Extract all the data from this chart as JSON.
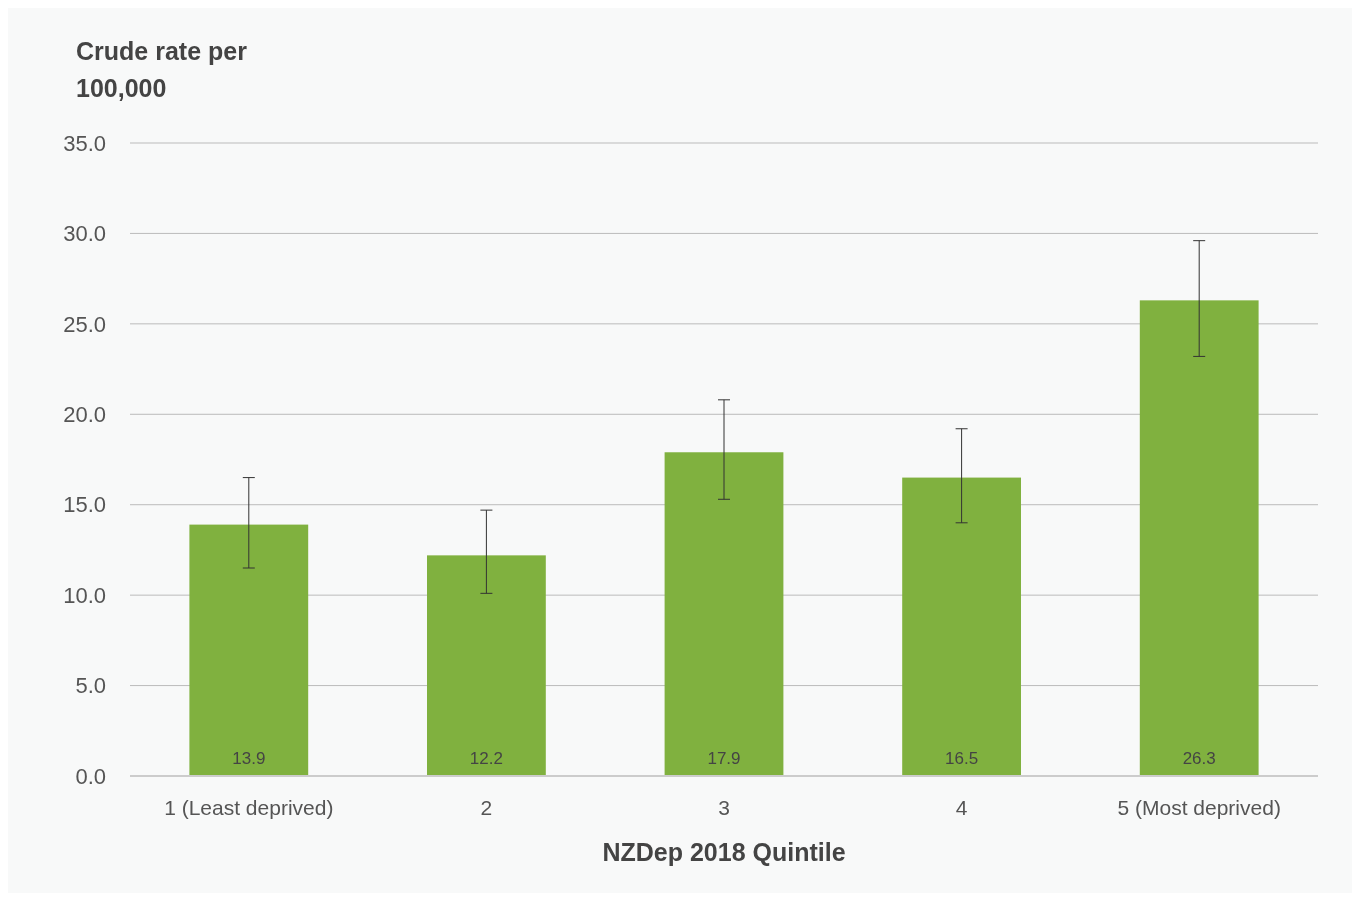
{
  "chart_data": {
    "type": "bar",
    "ylabel": "Crude rate per 100,000",
    "xlabel": "NZDep 2018 Quintile",
    "categories": [
      "1 (Least deprived)",
      "2",
      "3",
      "4",
      "5 (Most deprived)"
    ],
    "values": [
      13.9,
      12.2,
      17.9,
      16.5,
      26.3
    ],
    "errors": [
      [
        11.5,
        16.5
      ],
      [
        10.1,
        14.7
      ],
      [
        15.3,
        20.8
      ],
      [
        14.0,
        19.2
      ],
      [
        23.2,
        29.6
      ]
    ],
    "color": "#80b13f",
    "ylim": [
      0,
      35
    ],
    "yticks": [
      {
        "value": 0,
        "label": "0.0"
      },
      {
        "value": 5,
        "label": "5.0"
      },
      {
        "value": 10,
        "label": "10.0"
      },
      {
        "value": 15,
        "label": "15.0"
      },
      {
        "value": 20,
        "label": "20.0"
      },
      {
        "value": 25,
        "label": "25.0"
      },
      {
        "value": 30,
        "label": "30.0"
      },
      {
        "value": 35,
        "label": "35.0"
      }
    ],
    "grid": "y",
    "data_labels": true
  }
}
